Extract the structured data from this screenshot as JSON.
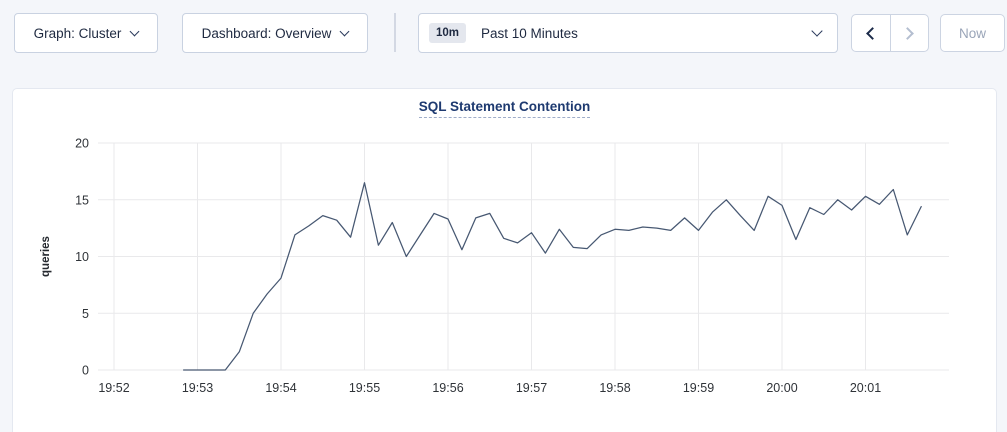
{
  "toolbar": {
    "graph_dropdown": {
      "label": "Graph: Cluster"
    },
    "dashboard_dropdown": {
      "label": "Dashboard: Overview"
    },
    "time_selector": {
      "badge": "10m",
      "label": "Past 10 Minutes"
    },
    "now_button_label": "Now"
  },
  "chart_data": {
    "type": "line",
    "title": "SQL Statement Contention",
    "xlabel": "",
    "ylabel": "queries",
    "ylim": [
      0,
      20
    ],
    "y_ticks": [
      0,
      5,
      10,
      15,
      20
    ],
    "x_ticks": [
      "19:52",
      "19:53",
      "19:54",
      "19:55",
      "19:56",
      "19:57",
      "19:58",
      "19:59",
      "20:00",
      "20:01"
    ],
    "grid": true,
    "legend": "none",
    "line_color": "#475872",
    "series": [
      {
        "name": "queries",
        "start_time": "19:52:50",
        "interval_seconds": 10,
        "values": [
          0,
          0,
          0,
          0,
          1.6,
          5,
          6.7,
          8.1,
          11.9,
          12.7,
          13.6,
          13.2,
          11.7,
          16.5,
          11,
          13,
          10,
          11.9,
          13.8,
          13.3,
          10.6,
          13.4,
          13.8,
          11.6,
          11.2,
          12.1,
          10.3,
          12.4,
          10.8,
          10.7,
          11.9,
          12.4,
          12.3,
          12.6,
          12.5,
          12.3,
          13.4,
          12.3,
          13.9,
          15,
          13.6,
          12.3,
          15.3,
          14.5,
          11.5,
          14.3,
          13.7,
          15,
          14.1,
          15.3,
          14.6,
          15.9,
          11.9,
          14.4
        ]
      }
    ]
  }
}
